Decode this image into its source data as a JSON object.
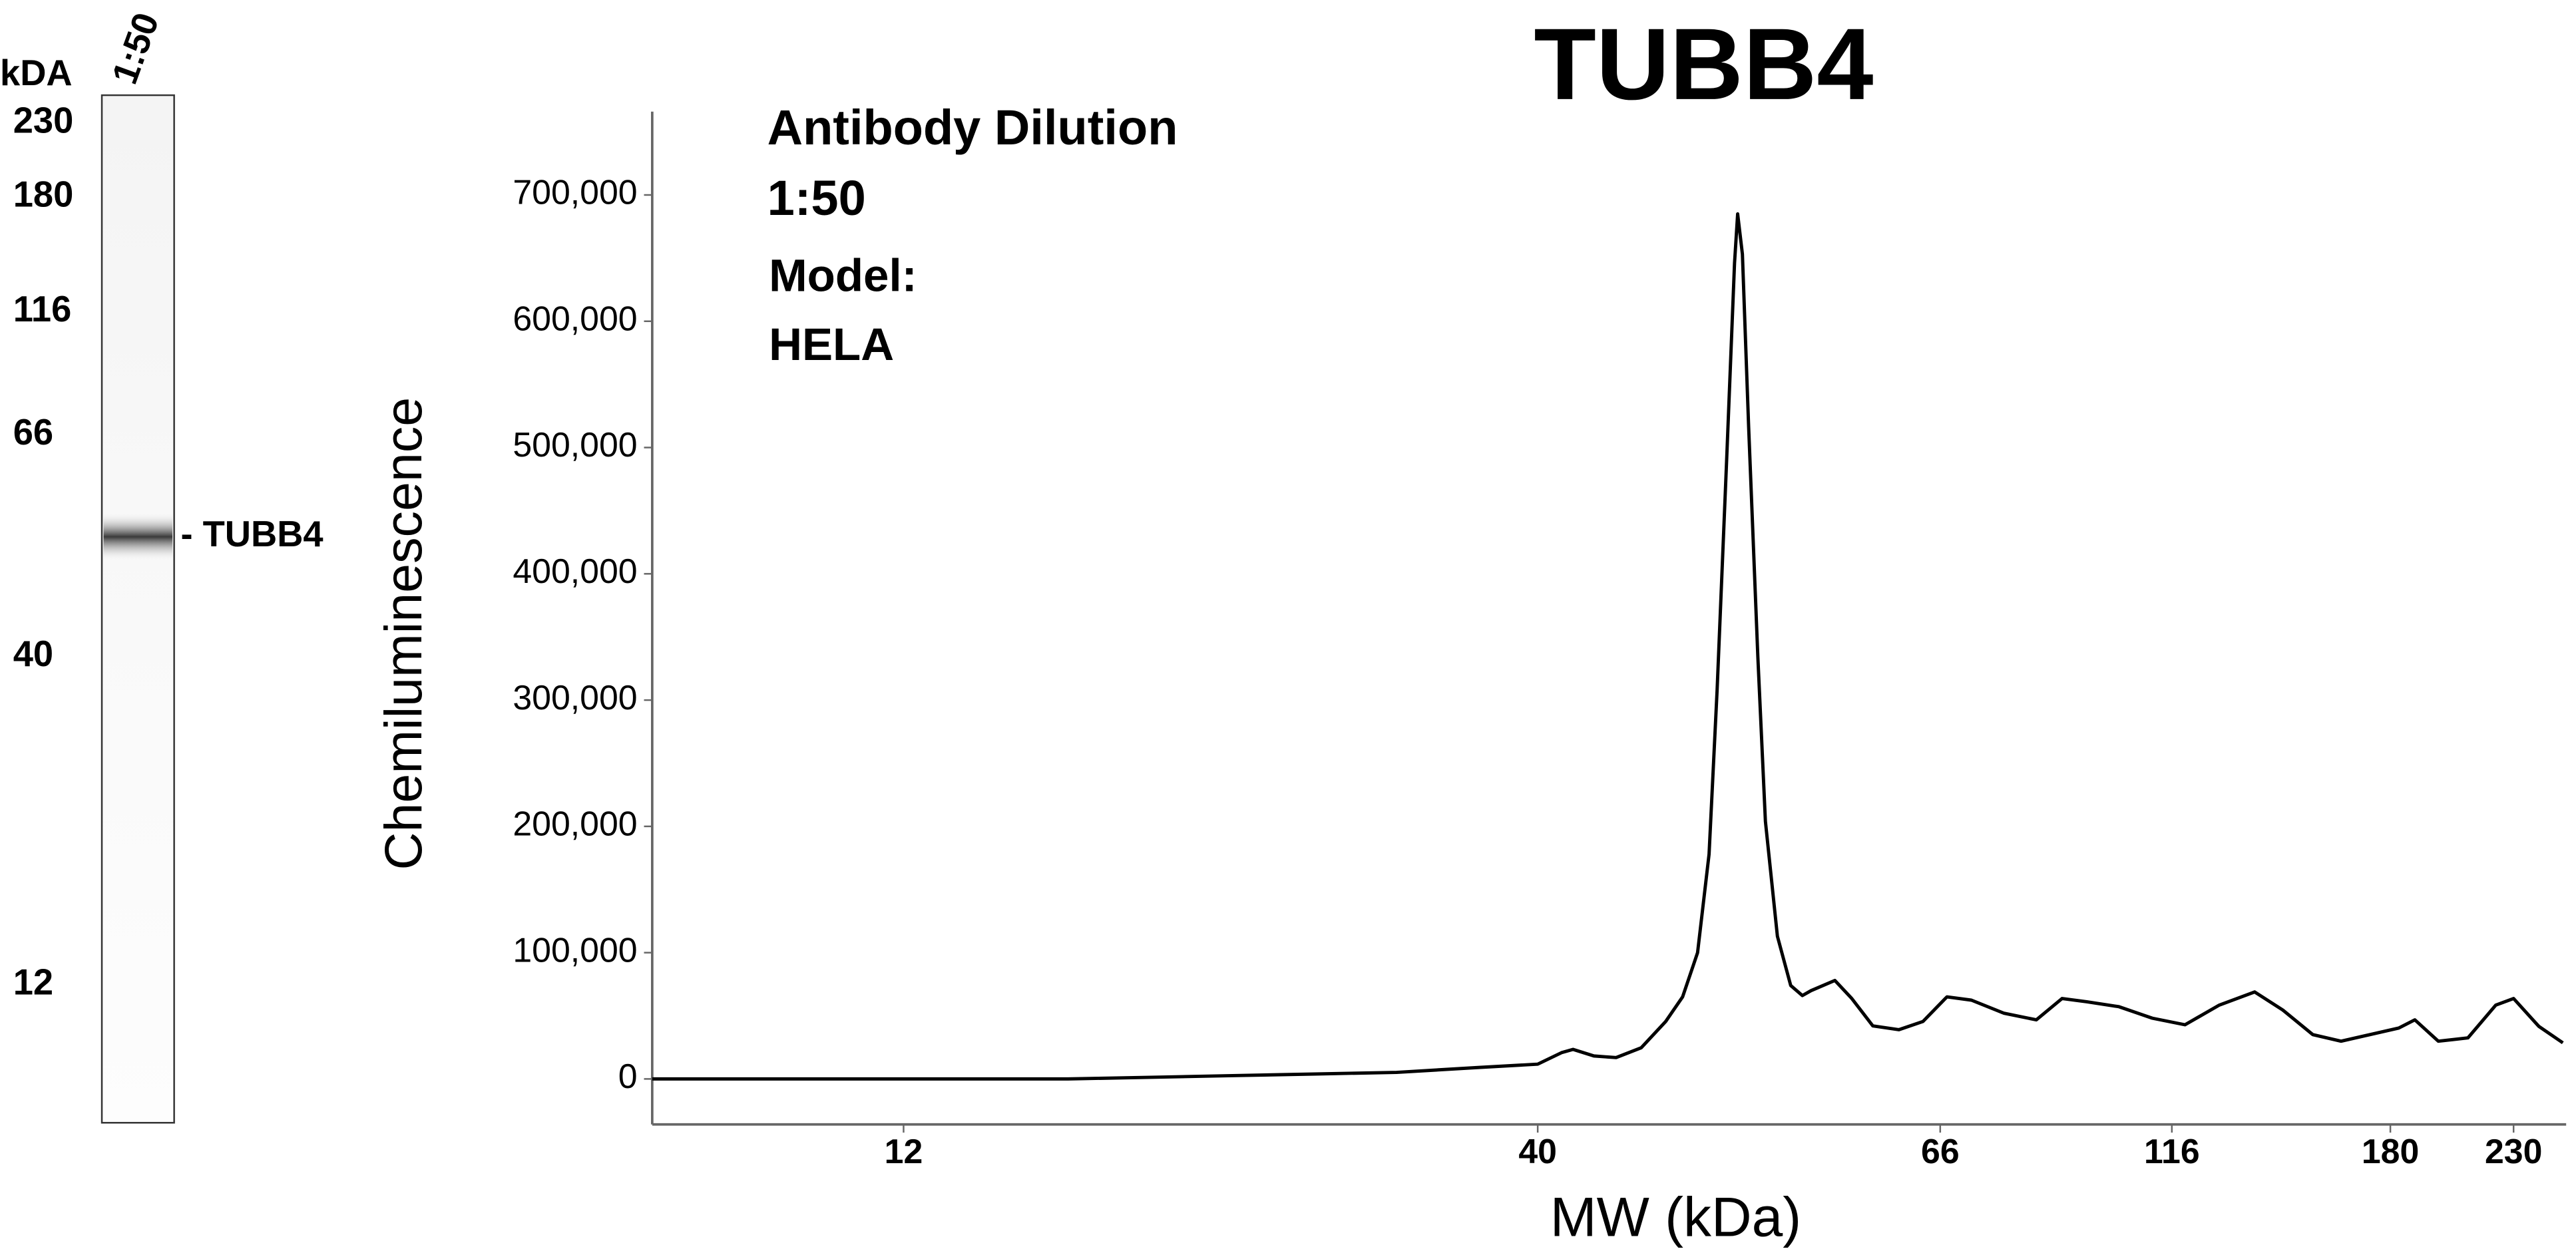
{
  "chart_data": {
    "type": "line",
    "title": "TUBB4",
    "annotations": [
      "Antibody Dilution",
      "1:50",
      "Model:",
      "HELA"
    ],
    "xlabel": "MW (kDa)",
    "ylabel": "Chemiluminescence",
    "x": [
      7.5,
      8.8,
      12,
      16.4,
      19.2,
      22.4,
      26.2,
      30.6,
      35.8,
      40,
      41.2,
      41.8,
      42.9,
      44.1,
      45.5,
      46.9,
      47.9,
      48.8,
      49.5,
      50.0,
      50.6,
      51.1,
      51.3,
      51.6,
      52.0,
      52.6,
      53.1,
      53.9,
      54.8,
      55.6,
      56.2,
      57.9,
      59.1,
      60.7,
      62.7,
      64.6,
      67.1,
      71.2,
      77.1,
      83.4,
      88.8,
      94.3,
      102,
      110.6,
      119.1,
      127.6,
      137,
      145,
      154,
      163,
      183,
      189,
      198,
      210,
      222,
      230,
      242,
      254
    ],
    "values": [
      0,
      0,
      0,
      0,
      1300,
      2600,
      3900,
      5200,
      9100,
      11700,
      20800,
      23400,
      18200,
      16900,
      24700,
      45500,
      65000,
      100000,
      178000,
      308000,
      490000,
      646000,
      685000,
      653000,
      516000,
      334000,
      204000,
      113000,
      74000,
      66000,
      70000,
      78000,
      64000,
      42000,
      39000,
      45500,
      65000,
      62400,
      52000,
      46800,
      63700,
      61100,
      57200,
      48100,
      42900,
      58500,
      68900,
      54600,
      35100,
      29900,
      40300,
      46800,
      29900,
      32500,
      58500,
      63700,
      41600,
      28600
    ],
    "color": "#000000",
    "xlim": [
      7.5,
      254
    ],
    "xticks": [
      12,
      40,
      66,
      116,
      180,
      230
    ],
    "ylim": [
      -36000,
      766000
    ],
    "yticks": [
      0,
      {
        "value": 100000,
        "label": "100,000"
      },
      {
        "value": 200000,
        "label": "200,000"
      },
      {
        "value": 300000,
        "label": "300,000"
      },
      {
        "value": 400000,
        "label": "400,000"
      },
      {
        "value": 500000,
        "label": "500,000"
      },
      {
        "value": 600000,
        "label": "600,000"
      },
      {
        "value": 700000,
        "label": "700,000"
      }
    ],
    "grid": false
  },
  "gel": {
    "header": "kDA",
    "lane": "1:50",
    "markers": [
      230,
      180,
      116,
      66,
      40,
      12
    ],
    "band_label": "- TUBB4"
  }
}
